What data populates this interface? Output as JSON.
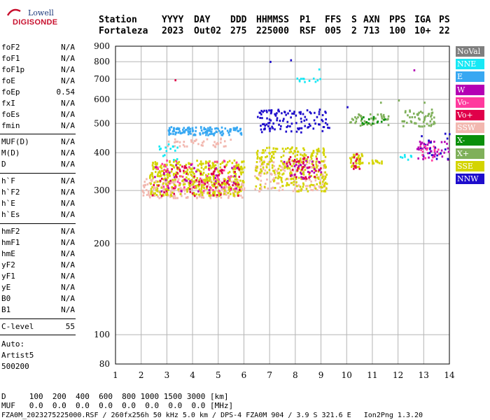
{
  "logo": {
    "line1": "Lowell",
    "line2": "DIGISONDE"
  },
  "header": {
    "labels": [
      "Station",
      "YYYY",
      "DAY",
      "DDD",
      "HHMMSS",
      "P1",
      "FFS",
      "S",
      "AXN",
      "PPS",
      "IGA",
      "PS"
    ],
    "values": [
      "Fortaleza",
      "2023",
      "Out02",
      "275",
      "225000",
      "RSF",
      "005",
      "2",
      "713",
      "100",
      "10+",
      "22"
    ]
  },
  "params_group1": [
    {
      "name": "foF2",
      "value": "N/A"
    },
    {
      "name": "foF1",
      "value": "N/A"
    },
    {
      "name": "foF1p",
      "value": "N/A"
    },
    {
      "name": "foE",
      "value": "N/A"
    },
    {
      "name": "foEp",
      "value": "0.54"
    },
    {
      "name": "fxI",
      "value": "N/A"
    },
    {
      "name": "foEs",
      "value": "N/A"
    },
    {
      "name": "fmin",
      "value": "N/A"
    }
  ],
  "params_group2": [
    {
      "name": "MUF(D)",
      "value": "N/A"
    },
    {
      "name": "M(D)",
      "value": "N/A"
    },
    {
      "name": "D",
      "value": "N/A"
    }
  ],
  "params_group3": [
    {
      "name": "h`F",
      "value": "N/A"
    },
    {
      "name": "h`F2",
      "value": "N/A"
    },
    {
      "name": "h`E",
      "value": "N/A"
    },
    {
      "name": "h`Es",
      "value": "N/A"
    }
  ],
  "params_group4": [
    {
      "name": "hmF2",
      "value": "N/A"
    },
    {
      "name": "hmF1",
      "value": "N/A"
    },
    {
      "name": "hmE",
      "value": "N/A"
    },
    {
      "name": "yF2",
      "value": "N/A"
    },
    {
      "name": "yF1",
      "value": "N/A"
    },
    {
      "name": "yE",
      "value": "N/A"
    },
    {
      "name": "B0",
      "value": "N/A"
    },
    {
      "name": "B1",
      "value": "N/A"
    }
  ],
  "clevel": {
    "name": "C-level",
    "value": "55"
  },
  "auto": [
    "Auto:",
    "Artist5",
    "500200"
  ],
  "legend": [
    {
      "label": "NoVal",
      "color": "#7f7f7f"
    },
    {
      "label": "NNE",
      "color": "#17e8f5"
    },
    {
      "label": "E",
      "color": "#38a8f2"
    },
    {
      "label": "W",
      "color": "#b400b4"
    },
    {
      "label": "Vo-",
      "color": "#ff3a9e"
    },
    {
      "label": "Vo+",
      "color": "#e0004a"
    },
    {
      "label": "SSW",
      "color": "#f2b8b0"
    },
    {
      "label": "X-",
      "color": "#0a8f0a"
    },
    {
      "label": "X+",
      "color": "#7fb05a"
    },
    {
      "label": "SSE",
      "color": "#d4d400"
    },
    {
      "label": "NNW",
      "color": "#1e0dcc"
    }
  ],
  "bottom": {
    "d_line": "D     100  200  400  600  800 1000 1500 3000 [km]",
    "muf_line": "MUF   0.0  0.0  0.0  0.0  0.0  0.0  0.0  0.0 [MHz]",
    "file_line": "FZA0M_2023275225000.RSF / 260fx256h 50 kHz 5.0 km / DPS-4 FZA0M 904 / 3.9 S 321.6 E   Ion2Png 1.3.20"
  },
  "chart_data": {
    "type": "scatter",
    "xlabel": "",
    "ylabel": "",
    "xlim": [
      1,
      14
    ],
    "ylim": [
      80,
      900
    ],
    "y_scale": "log",
    "x_ticks": [
      1,
      2,
      3,
      4,
      5,
      6,
      7,
      8,
      9,
      10,
      11,
      12,
      13,
      14
    ],
    "y_ticks": [
      80,
      100,
      200,
      300,
      400,
      500,
      600,
      700,
      800,
      900
    ],
    "grid": true,
    "legend_position": "right",
    "clusters": [
      {
        "series": "SSW",
        "x": [
          2.0,
          6.0
        ],
        "y": [
          285,
          330
        ],
        "n": 260
      },
      {
        "series": "SSE",
        "x": [
          2.3,
          6.0
        ],
        "y": [
          290,
          380
        ],
        "n": 420
      },
      {
        "series": "Vo+",
        "x": [
          2.4,
          5.8
        ],
        "y": [
          290,
          370
        ],
        "n": 90
      },
      {
        "series": "Vo-",
        "x": [
          2.4,
          5.8
        ],
        "y": [
          300,
          380
        ],
        "n": 50
      },
      {
        "series": "W",
        "x": [
          2.4,
          5.8
        ],
        "y": [
          300,
          370
        ],
        "n": 30
      },
      {
        "series": "E",
        "x": [
          3.0,
          5.9
        ],
        "y": [
          460,
          490
        ],
        "n": 130
      },
      {
        "series": "SSW",
        "x": [
          3.0,
          5.5
        ],
        "y": [
          420,
          450
        ],
        "n": 40
      },
      {
        "series": "NNE",
        "x": [
          2.6,
          3.4
        ],
        "y": [
          380,
          430
        ],
        "n": 15
      },
      {
        "series": "SSW",
        "x": [
          6.4,
          9.2
        ],
        "y": [
          300,
          380
        ],
        "n": 150
      },
      {
        "series": "SSE",
        "x": [
          6.4,
          9.2
        ],
        "y": [
          300,
          420
        ],
        "n": 260
      },
      {
        "series": "Vo+",
        "x": [
          7.5,
          9.0
        ],
        "y": [
          330,
          390
        ],
        "n": 40
      },
      {
        "series": "W",
        "x": [
          7.5,
          9.0
        ],
        "y": [
          330,
          380
        ],
        "n": 25
      },
      {
        "series": "NNW",
        "x": [
          6.5,
          9.3
        ],
        "y": [
          470,
          560
        ],
        "n": 120
      },
      {
        "series": "NNE",
        "x": [
          7.9,
          9.1
        ],
        "y": [
          690,
          710
        ],
        "n": 12
      },
      {
        "series": "SSE",
        "x": [
          10.1,
          10.6
        ],
        "y": [
          360,
          400
        ],
        "n": 40
      },
      {
        "series": "Vo+",
        "x": [
          10.2,
          10.5
        ],
        "y": [
          350,
          400
        ],
        "n": 12
      },
      {
        "series": "SSE",
        "x": [
          10.4,
          11.4
        ],
        "y": [
          370,
          380
        ],
        "n": 15
      },
      {
        "series": "X+",
        "x": [
          10.1,
          11.6
        ],
        "y": [
          495,
          540
        ],
        "n": 40
      },
      {
        "series": "X-",
        "x": [
          10.5,
          11.5
        ],
        "y": [
          500,
          530
        ],
        "n": 15
      },
      {
        "series": "X+",
        "x": [
          12.1,
          13.4
        ],
        "y": [
          490,
          560
        ],
        "n": 55
      },
      {
        "series": "W",
        "x": [
          12.7,
          14.0
        ],
        "y": [
          380,
          440
        ],
        "n": 40
      },
      {
        "series": "NNW",
        "x": [
          12.8,
          14.0
        ],
        "y": [
          380,
          470
        ],
        "n": 20
      },
      {
        "series": "Vo-",
        "x": [
          12.8,
          13.6
        ],
        "y": [
          380,
          430
        ],
        "n": 15
      },
      {
        "series": "NNE",
        "x": [
          12.0,
          12.6
        ],
        "y": [
          380,
          400
        ],
        "n": 8
      }
    ],
    "isolated_points": [
      {
        "series": "Vo+",
        "x": 3.3,
        "y": 700
      },
      {
        "series": "NNW",
        "x": 7.0,
        "y": 805
      },
      {
        "series": "NNW",
        "x": 7.8,
        "y": 815
      },
      {
        "series": "NNE",
        "x": 8.9,
        "y": 760
      },
      {
        "series": "W",
        "x": 12.6,
        "y": 755
      },
      {
        "series": "NNW",
        "x": 10.0,
        "y": 570
      },
      {
        "series": "X+",
        "x": 11.3,
        "y": 590
      },
      {
        "series": "X+",
        "x": 12.0,
        "y": 600
      },
      {
        "series": "X+",
        "x": 13.0,
        "y": 590
      }
    ]
  }
}
